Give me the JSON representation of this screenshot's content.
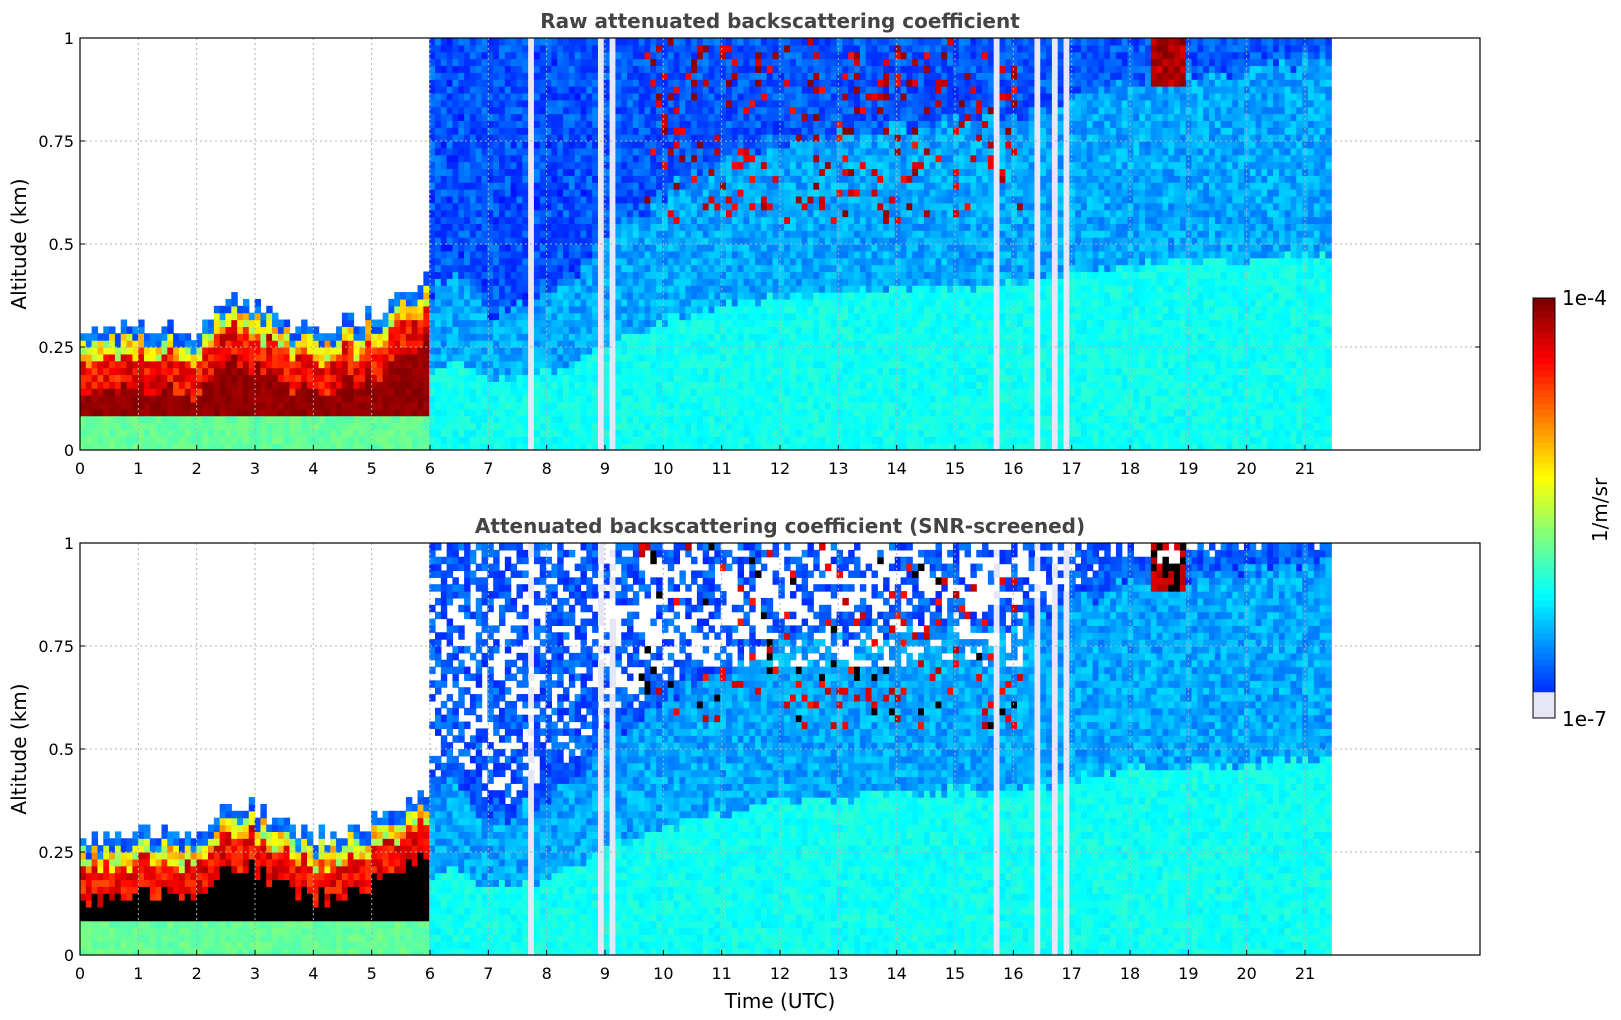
{
  "colors": {
    "jet": [
      "#00007f",
      "#0000ff",
      "#007fff",
      "#00ffff",
      "#7fff7f",
      "#ffff00",
      "#ff7f00",
      "#ff0000",
      "#7f0000"
    ],
    "below_min": "#e6e6f7",
    "masked": "#ffffff",
    "screened_saturated": "#000000",
    "title_text": "#444444",
    "grid": "#b0b0b0"
  },
  "chart_data": [
    {
      "type": "heatmap",
      "title": "Raw attenuated backscattering coefficient",
      "xlabel": "",
      "ylabel": "Altitude (km)",
      "xlim": [
        0,
        24
      ],
      "ylim": [
        0,
        1
      ],
      "xticks": [
        "0",
        "1",
        "2",
        "3",
        "4",
        "5",
        "6",
        "7",
        "8",
        "9",
        "10",
        "11",
        "12",
        "13",
        "14",
        "15",
        "16",
        "17",
        "18",
        "19",
        "20",
        "21"
      ],
      "yticks": [
        "0",
        "0.25",
        "0.5",
        "0.75",
        "1"
      ],
      "grid": true,
      "data_end_hour": 21.45,
      "boundary_layer_top_km": [
        [
          0,
          0.25
        ],
        [
          1,
          0.27
        ],
        [
          2,
          0.26
        ],
        [
          2.5,
          0.33
        ],
        [
          3,
          0.33
        ],
        [
          4,
          0.25
        ],
        [
          5,
          0.3
        ],
        [
          6,
          0.38
        ],
        [
          6.5,
          0.42
        ],
        [
          7,
          0.32
        ],
        [
          8,
          0.38
        ],
        [
          9,
          0.5
        ],
        [
          10,
          0.62
        ],
        [
          11,
          0.7
        ],
        [
          12,
          0.75
        ],
        [
          15,
          0.8
        ],
        [
          16,
          0.8
        ],
        [
          18,
          0.9
        ],
        [
          21.45,
          0.95
        ]
      ],
      "gap_hours": [
        7.7,
        8.9,
        9.1,
        15.7,
        16.4,
        16.75,
        16.9
      ],
      "colorscale": "jet",
      "log_scale": true
    },
    {
      "type": "heatmap",
      "title": "Attenuated backscattering coefficient (SNR-screened)",
      "xlabel": "Time (UTC)",
      "ylabel": "Altitude (km)",
      "xlim": [
        0,
        24
      ],
      "ylim": [
        0,
        1
      ],
      "xticks": [
        "0",
        "1",
        "2",
        "3",
        "4",
        "5",
        "6",
        "7",
        "8",
        "9",
        "10",
        "11",
        "12",
        "13",
        "14",
        "15",
        "16",
        "17",
        "18",
        "19",
        "20",
        "21"
      ],
      "yticks": [
        "0",
        "0.25",
        "0.5",
        "0.75",
        "1"
      ],
      "grid": true,
      "data_end_hour": 21.45,
      "gap_hours": [
        7.7,
        8.9,
        9.1,
        15.7,
        16.4,
        16.75,
        16.9
      ],
      "colorscale": "jet",
      "log_scale": true
    }
  ],
  "colorbar": {
    "max_label": "1e-4",
    "min_label": "1e-7",
    "unit_label": "1/m/sr",
    "range": [
      1e-07,
      0.0001
    ],
    "log_scale": true,
    "orientation": "vertical",
    "placement": "right"
  }
}
